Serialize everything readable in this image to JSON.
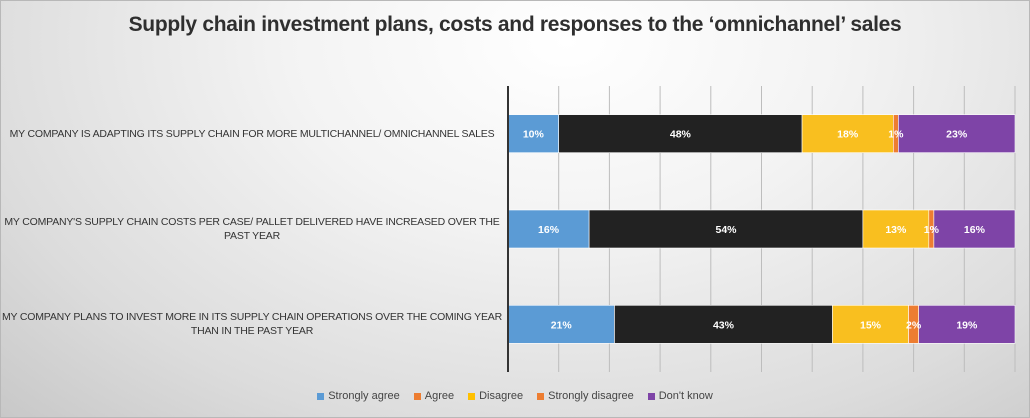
{
  "chart_data": {
    "type": "bar",
    "orientation": "horizontal",
    "stacked": "percent",
    "title": "Supply chain investment plans, costs and responses to the ‘omnichannel’ sales",
    "xlabel": "",
    "ylabel": "",
    "xlim": [
      0,
      100
    ],
    "grid": true,
    "legend_position": "bottom",
    "categories": [
      "MY COMPANY IS ADAPTING ITS SUPPLY CHAIN FOR MORE MULTICHANNEL/ OMNICHANNEL SALES",
      "MY COMPANY'S SUPPLY CHAIN COSTS PER CASE/ PALLET DELIVERED HAVE INCREASED OVER THE PAST YEAR",
      "MY COMPANY PLANS TO INVEST MORE IN ITS SUPPLY CHAIN OPERATIONS OVER THE COMING YEAR THAN IN THE PAST YEAR"
    ],
    "series": [
      {
        "name": "Strongly agree",
        "bar_color": "#5B9BD5",
        "legend_color": "#5B9BD5",
        "values": [
          10,
          16,
          21
        ],
        "labels": [
          "10%",
          "16%",
          "21%"
        ]
      },
      {
        "name": "Agree",
        "bar_color": "#222222",
        "legend_color": "#ED7D31",
        "values": [
          48,
          54,
          43
        ],
        "labels": [
          "48%",
          "54%",
          "43%"
        ]
      },
      {
        "name": "Disagree",
        "bar_color": "#F9BF1F",
        "legend_color": "#FFC000",
        "values": [
          18,
          13,
          15
        ],
        "labels": [
          "18%",
          "13%",
          "15%"
        ]
      },
      {
        "name": "Strongly disagree",
        "bar_color": "#ED7D31",
        "legend_color": "#ED7D31",
        "values": [
          1,
          1,
          2
        ],
        "labels": [
          "1%",
          "1%",
          "2%"
        ]
      },
      {
        "name": "Don't know",
        "bar_color": "#7E44A7",
        "legend_color": "#7E44A7",
        "values": [
          23,
          16,
          19
        ],
        "labels": [
          "23%",
          "16%",
          "19%"
        ]
      }
    ]
  }
}
